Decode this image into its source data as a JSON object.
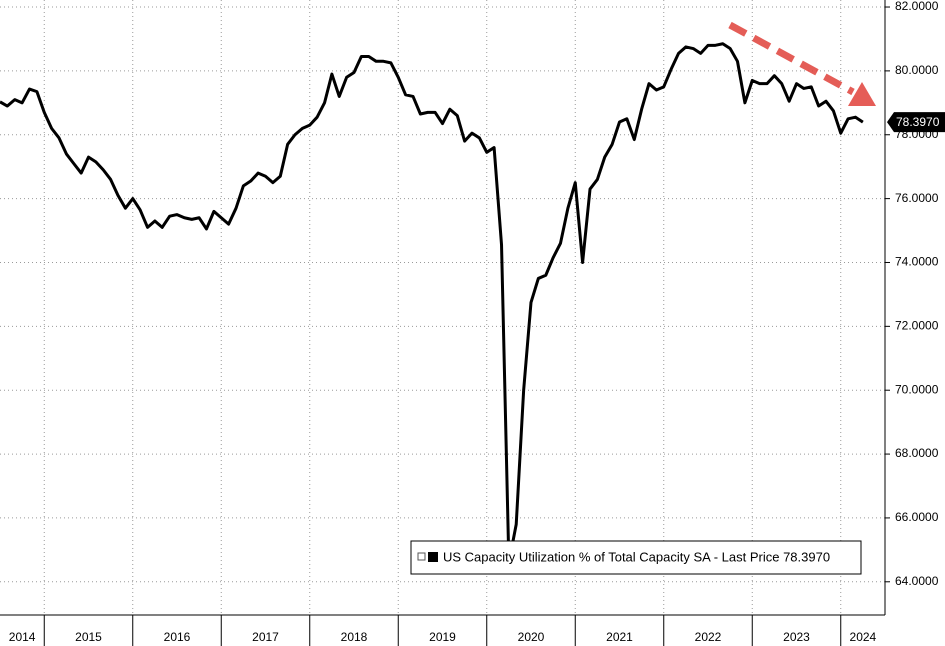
{
  "chart_data": {
    "type": "line",
    "series": [
      {
        "name": "US Capacity Utilization % of Total Capacity SA - Last Price 78.3970",
        "color": "#000000",
        "x": [
          2014.5,
          2014.583,
          2014.667,
          2014.75,
          2014.833,
          2014.917,
          2015,
          2015.083,
          2015.167,
          2015.25,
          2015.333,
          2015.417,
          2015.5,
          2015.583,
          2015.667,
          2015.75,
          2015.833,
          2015.917,
          2016,
          2016.083,
          2016.167,
          2016.25,
          2016.333,
          2016.417,
          2016.5,
          2016.583,
          2016.667,
          2016.75,
          2016.833,
          2016.917,
          2017,
          2017.083,
          2017.167,
          2017.25,
          2017.333,
          2017.417,
          2017.5,
          2017.583,
          2017.667,
          2017.75,
          2017.833,
          2017.917,
          2018,
          2018.083,
          2018.167,
          2018.25,
          2018.333,
          2018.417,
          2018.5,
          2018.583,
          2018.667,
          2018.75,
          2018.833,
          2018.917,
          2019,
          2019.083,
          2019.167,
          2019.25,
          2019.333,
          2019.417,
          2019.5,
          2019.583,
          2019.667,
          2019.75,
          2019.833,
          2019.917,
          2020,
          2020.083,
          2020.167,
          2020.25,
          2020.333,
          2020.417,
          2020.5,
          2020.583,
          2020.667,
          2020.75,
          2020.833,
          2020.917,
          2021,
          2021.083,
          2021.167,
          2021.25,
          2021.333,
          2021.417,
          2021.5,
          2021.583,
          2021.667,
          2021.75,
          2021.833,
          2021.917,
          2022,
          2022.083,
          2022.167,
          2022.25,
          2022.333,
          2022.417,
          2022.5,
          2022.583,
          2022.667,
          2022.75,
          2022.833,
          2022.917,
          2023,
          2023.083,
          2023.167,
          2023.25,
          2023.333,
          2023.417,
          2023.5,
          2023.583,
          2023.667,
          2023.75,
          2023.833,
          2023.917,
          2024,
          2024.083,
          2024.167,
          2024.25
        ],
        "values": [
          79.03,
          78.9,
          79.1,
          79.0,
          79.43,
          79.35,
          78.7,
          78.2,
          77.9,
          77.4,
          77.1,
          76.8,
          77.3,
          77.15,
          76.9,
          76.6,
          76.1,
          75.7,
          76.0,
          75.65,
          75.1,
          75.3,
          75.1,
          75.45,
          75.5,
          75.4,
          75.35,
          75.4,
          75.05,
          75.6,
          75.4,
          75.2,
          75.7,
          76.4,
          76.55,
          76.8,
          76.7,
          76.5,
          76.7,
          77.7,
          78.0,
          78.2,
          78.3,
          78.55,
          79.0,
          79.9,
          79.2,
          79.8,
          79.95,
          80.45,
          80.45,
          80.3,
          80.3,
          80.25,
          79.8,
          79.25,
          79.2,
          78.65,
          78.7,
          78.7,
          78.35,
          78.8,
          78.6,
          77.8,
          78.05,
          77.9,
          77.45,
          77.6,
          74.55,
          64.6,
          65.8,
          70.0,
          72.75,
          73.5,
          73.6,
          74.15,
          74.6,
          75.7,
          76.5,
          74.0,
          76.3,
          76.6,
          77.3,
          77.7,
          78.4,
          78.5,
          77.85,
          78.8,
          79.6,
          79.4,
          79.5,
          80.05,
          80.55,
          80.75,
          80.7,
          80.55,
          80.8,
          80.8,
          80.85,
          80.7,
          80.3,
          79.0,
          79.7,
          79.6,
          79.6,
          79.85,
          79.6,
          79.05,
          79.6,
          79.45,
          79.5,
          78.9,
          79.05,
          78.75,
          78.05,
          78.5,
          78.55,
          78.397
        ]
      }
    ],
    "last_price_label": "78.3970",
    "xlim": [
      2014.5,
      2024.5
    ],
    "xticks": [
      {
        "value": 2014,
        "label": "2014"
      },
      {
        "value": 2015,
        "label": "2015"
      },
      {
        "value": 2016,
        "label": "2016"
      },
      {
        "value": 2017,
        "label": "2017"
      },
      {
        "value": 2018,
        "label": "2018"
      },
      {
        "value": 2019,
        "label": "2019"
      },
      {
        "value": 2020,
        "label": "2020"
      },
      {
        "value": 2021,
        "label": "2021"
      },
      {
        "value": 2022,
        "label": "2022"
      },
      {
        "value": 2023,
        "label": "2023"
      },
      {
        "value": 2024,
        "label": "2024"
      }
    ],
    "ylim": [
      62.96,
      82.22
    ],
    "yticks": [
      {
        "value": 64,
        "label": "64.0000"
      },
      {
        "value": 66,
        "label": "66.0000"
      },
      {
        "value": 68,
        "label": "68.0000"
      },
      {
        "value": 70,
        "label": "70.0000"
      },
      {
        "value": 72,
        "label": "72.0000"
      },
      {
        "value": 74,
        "label": "74.0000"
      },
      {
        "value": 76,
        "label": "76.0000"
      },
      {
        "value": 78,
        "label": "78.0000"
      },
      {
        "value": 80,
        "label": "80.0000"
      },
      {
        "value": 82,
        "label": "82.0000"
      }
    ],
    "grid": true
  }
}
